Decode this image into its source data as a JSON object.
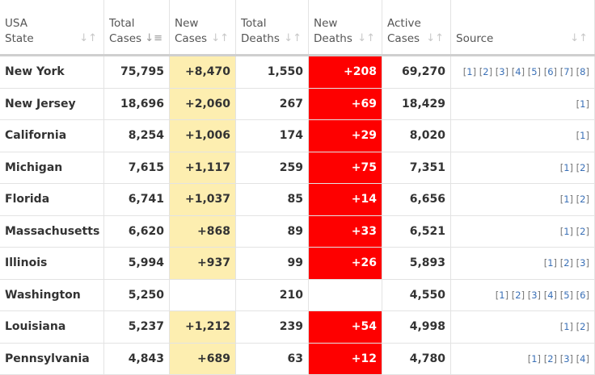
{
  "headers": [
    {
      "l1": "USA",
      "l2": "State",
      "sort": "sort-icon"
    },
    {
      "l1": "Total",
      "l2": "Cases",
      "sort": "sort-desc-icon"
    },
    {
      "l1": "New",
      "l2": "Cases",
      "sort": "sort-icon"
    },
    {
      "l1": "Total",
      "l2": "Deaths",
      "sort": "sort-icon"
    },
    {
      "l1": "New",
      "l2": "Deaths",
      "sort": "sort-icon"
    },
    {
      "l1": "Active",
      "l2": "Cases",
      "sort": "sort-icon"
    },
    {
      "l1": "",
      "l2": "Source",
      "sort": "sort-icon"
    }
  ],
  "rows": [
    {
      "state": "New York",
      "total_cases": "75,795",
      "new_cases": "+8,470",
      "total_deaths": "1,550",
      "new_deaths": "+208",
      "active": "69,270",
      "sources": 8
    },
    {
      "state": "New Jersey",
      "total_cases": "18,696",
      "new_cases": "+2,060",
      "total_deaths": "267",
      "new_deaths": "+69",
      "active": "18,429",
      "sources": 1
    },
    {
      "state": "California",
      "total_cases": "8,254",
      "new_cases": "+1,006",
      "total_deaths": "174",
      "new_deaths": "+29",
      "active": "8,020",
      "sources": 1
    },
    {
      "state": "Michigan",
      "total_cases": "7,615",
      "new_cases": "+1,117",
      "total_deaths": "259",
      "new_deaths": "+75",
      "active": "7,351",
      "sources": 2
    },
    {
      "state": "Florida",
      "total_cases": "6,741",
      "new_cases": "+1,037",
      "total_deaths": "85",
      "new_deaths": "+14",
      "active": "6,656",
      "sources": 2
    },
    {
      "state": "Massachusetts",
      "total_cases": "6,620",
      "new_cases": "+868",
      "total_deaths": "89",
      "new_deaths": "+33",
      "active": "6,521",
      "sources": 2
    },
    {
      "state": "Illinois",
      "total_cases": "5,994",
      "new_cases": "+937",
      "total_deaths": "99",
      "new_deaths": "+26",
      "active": "5,893",
      "sources": 3
    },
    {
      "state": "Washington",
      "total_cases": "5,250",
      "new_cases": "",
      "total_deaths": "210",
      "new_deaths": "",
      "active": "4,550",
      "sources": 6
    },
    {
      "state": "Louisiana",
      "total_cases": "5,237",
      "new_cases": "+1,212",
      "total_deaths": "239",
      "new_deaths": "+54",
      "active": "4,998",
      "sources": 2
    },
    {
      "state": "Pennsylvania",
      "total_cases": "4,843",
      "new_cases": "+689",
      "total_deaths": "63",
      "new_deaths": "+12",
      "active": "4,780",
      "sources": 4
    }
  ],
  "colors": {
    "new_cases_bg": "#fdeeb0",
    "new_deaths_bg": "#fe0000",
    "link": "#3a70b7"
  }
}
